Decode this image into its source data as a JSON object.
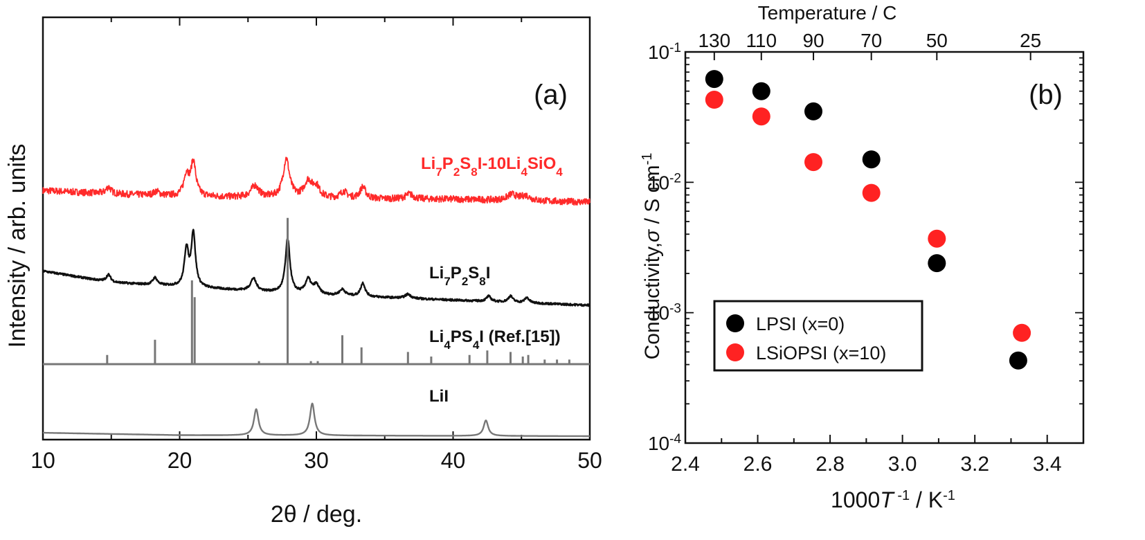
{
  "chart_data": [
    {
      "panel": "(a)",
      "type": "line",
      "xlabel": "2θ / deg.",
      "ylabel": "Intensity / arb. units",
      "xlim": [
        10,
        50
      ],
      "xticks": [
        "10",
        "20",
        "30",
        "40",
        "50"
      ],
      "y_ticks_shown": false,
      "series": [
        {
          "name": "Li7P2S8I-10Li4SiO4",
          "color": "#ff2a2a",
          "noise": 0.35,
          "peaks": [
            [
              14.8,
              0.7,
              0.22
            ],
            [
              18.3,
              0.4,
              0.25
            ],
            [
              20.5,
              2.2,
              0.22
            ],
            [
              21.0,
              3.5,
              0.22
            ],
            [
              25.5,
              1.2,
              0.35
            ],
            [
              27.8,
              4.0,
              0.28
            ],
            [
              29.4,
              1.7,
              0.35
            ],
            [
              30.0,
              1.1,
              0.3
            ],
            [
              32.0,
              0.7,
              0.3
            ],
            [
              33.4,
              1.2,
              0.25
            ],
            [
              36.8,
              0.5,
              0.35
            ],
            [
              44.3,
              0.6,
              0.4
            ],
            [
              45.3,
              0.5,
              0.4
            ]
          ],
          "baseline": [
            [
              10,
              1.2
            ],
            [
              15,
              0.85
            ],
            [
              20,
              0.6
            ],
            [
              30,
              0.35
            ],
            [
              40,
              0.3
            ],
            [
              50,
              0
            ]
          ]
        },
        {
          "name": "Li7P2S8I",
          "color": "#111111",
          "noise": 0.1,
          "peaks": [
            [
              14.8,
              0.7,
              0.2
            ],
            [
              18.2,
              0.7,
              0.2
            ],
            [
              20.5,
              3.6,
              0.18
            ],
            [
              21.0,
              5.2,
              0.18
            ],
            [
              25.4,
              1.2,
              0.25
            ],
            [
              27.9,
              5.2,
              0.2
            ],
            [
              29.4,
              1.4,
              0.25
            ],
            [
              30.0,
              0.9,
              0.25
            ],
            [
              31.9,
              0.6,
              0.25
            ],
            [
              33.4,
              1.3,
              0.2
            ],
            [
              36.7,
              0.4,
              0.25
            ],
            [
              42.6,
              0.5,
              0.2
            ],
            [
              44.2,
              0.6,
              0.2
            ],
            [
              45.4,
              0.5,
              0.2
            ]
          ],
          "baseline": [
            [
              10,
              3.3
            ],
            [
              15,
              2.2
            ],
            [
              20,
              1.8
            ],
            [
              30,
              1.0
            ],
            [
              40,
              0.5
            ],
            [
              50,
              0
            ]
          ]
        },
        {
          "name": "Li4PS4I (Ref.[15])",
          "color": "#777777",
          "sticks": [
            [
              14.7,
              0.6
            ],
            [
              18.2,
              1.6
            ],
            [
              20.9,
              5.5
            ],
            [
              21.1,
              4.4
            ],
            [
              25.8,
              0.2
            ],
            [
              27.9,
              9.6
            ],
            [
              29.6,
              0.2
            ],
            [
              30.1,
              0.2
            ],
            [
              31.9,
              1.9
            ],
            [
              33.3,
              1.1
            ],
            [
              36.7,
              0.8
            ],
            [
              38.4,
              0.5
            ],
            [
              41.2,
              0.6
            ],
            [
              42.5,
              0.9
            ],
            [
              44.2,
              0.8
            ],
            [
              45.1,
              0.5
            ],
            [
              45.5,
              0.6
            ],
            [
              46.7,
              0.3
            ],
            [
              47.6,
              0.3
            ],
            [
              48.5,
              0.3
            ]
          ]
        },
        {
          "name": "LiI",
          "color": "#777777",
          "peaks": [
            [
              25.6,
              2.7,
              0.2
            ],
            [
              29.7,
              3.3,
              0.2
            ],
            [
              42.4,
              1.6,
              0.2
            ]
          ],
          "baseline": [
            [
              10,
              0.35
            ],
            [
              20,
              0.1
            ],
            [
              50,
              0
            ]
          ]
        }
      ]
    },
    {
      "panel": "(b)",
      "type": "scatter",
      "xlabel": "1000T⁻¹ / K⁻¹",
      "ylabel": "Conductivity,σ / S cm⁻¹",
      "top_xlabel": "Temperature / C",
      "xlim": [
        2.4,
        3.5
      ],
      "ylim": [
        0.0001,
        0.1
      ],
      "yscale": "log",
      "xticks": [
        "2.4",
        "2.6",
        "2.8",
        "3.0",
        "3.2",
        "3.4"
      ],
      "yticks": [
        {
          "value": 0.1,
          "base": "10",
          "exp": "-1"
        },
        {
          "value": 0.01,
          "base": "10",
          "exp": "-2"
        },
        {
          "value": 0.001,
          "base": "10",
          "exp": "-3"
        },
        {
          "value": 0.0001,
          "base": "10",
          "exp": "-4"
        }
      ],
      "top_ticks": [
        {
          "label": "130",
          "x": 2.48
        },
        {
          "label": "110",
          "x": 2.61
        },
        {
          "label": "90",
          "x": 2.754
        },
        {
          "label": "70",
          "x": 2.914
        },
        {
          "label": "50",
          "x": 3.095
        },
        {
          "label": "25",
          "x": 3.354
        }
      ],
      "legend_placement": "bottom-left",
      "series": [
        {
          "name": "LPSI (x=0)",
          "color": "#000000",
          "points": [
            [
              2.48,
              0.062
            ],
            [
              2.61,
              0.05
            ],
            [
              2.754,
              0.035
            ],
            [
              2.914,
              0.015
            ],
            [
              3.095,
              0.0024
            ],
            [
              3.32,
              0.00043
            ]
          ]
        },
        {
          "name": "LSiOPSI (x=10)",
          "color": "#ff2222",
          "points": [
            [
              2.48,
              0.043
            ],
            [
              2.61,
              0.032
            ],
            [
              2.754,
              0.0143
            ],
            [
              2.914,
              0.0083
            ],
            [
              3.095,
              0.0037
            ],
            [
              3.33,
              0.0007
            ]
          ]
        }
      ]
    }
  ]
}
